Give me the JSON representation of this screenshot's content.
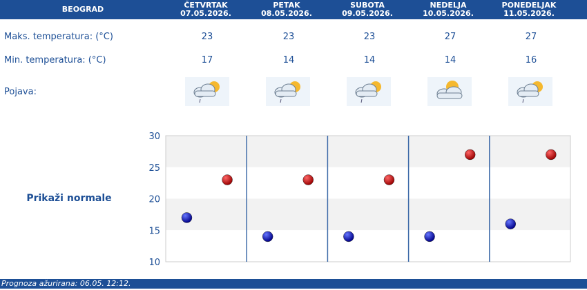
{
  "header": {
    "city": "BEOGRAD",
    "days": [
      {
        "name": "ČETVRTAK",
        "date": "07.05.2026."
      },
      {
        "name": "PETAK",
        "date": "08.05.2026."
      },
      {
        "name": "SUBOTA",
        "date": "09.05.2026."
      },
      {
        "name": "NEDELJA",
        "date": "10.05.2026."
      },
      {
        "name": "PONEDELJAK",
        "date": "11.05.2026."
      }
    ]
  },
  "rows": {
    "max_label": "Maks. temperatura: (°C)",
    "min_label": "Min. temperatura: (°C)",
    "phen_label": "Pojava:",
    "max_values": [
      "23",
      "23",
      "23",
      "27",
      "27"
    ],
    "min_values": [
      "17",
      "14",
      "14",
      "14",
      "16"
    ],
    "icons": [
      "sun-cloud-drizzle-icon",
      "sun-cloud-drizzle-icon",
      "sun-cloud-drizzle-icon",
      "sun-cloud-icon",
      "sun-cloud-drizzle-icon"
    ]
  },
  "chart_link": "Prikaži normale",
  "chart_data": {
    "type": "scatter",
    "x": [
      1,
      2,
      3,
      4,
      5
    ],
    "series": [
      {
        "values": [
          23,
          23,
          23,
          27,
          27
        ],
        "color": "#cc0000"
      },
      {
        "values": [
          17,
          14,
          14,
          14,
          16
        ],
        "color": "#0000cc"
      }
    ],
    "yticks": [
      "30",
      "25",
      "20",
      "15",
      "10"
    ],
    "ylim": [
      10,
      30
    ],
    "grid": true
  },
  "footer": "Prognoza ažurirana:  06.05. 12:12.",
  "colors": {
    "header": "#1d4f96",
    "text": "#1d4f96",
    "max_dot": "#cc0000",
    "min_dot": "#0000cc"
  }
}
